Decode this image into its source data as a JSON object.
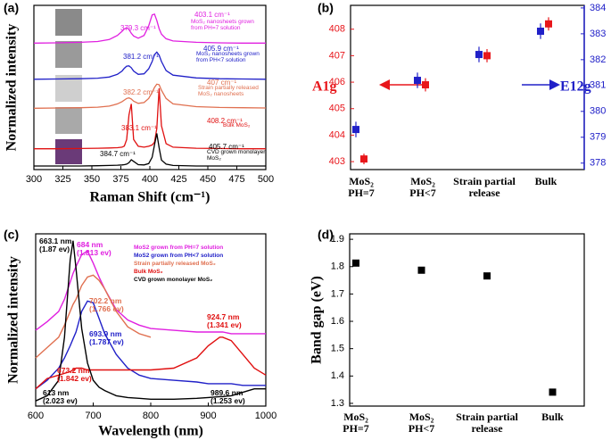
{
  "chart_data": [
    {
      "type": "line",
      "panel_label": "(a)",
      "xlabel": "Raman Shift (cm⁻¹)",
      "ylabel": "Normalized intensity",
      "x": [
        300,
        320,
        340,
        355,
        365,
        372,
        376,
        378,
        380,
        382,
        384,
        386,
        390,
        395,
        399,
        402,
        404,
        406,
        408,
        410,
        414,
        420,
        440,
        460,
        480,
        500
      ],
      "xlim": [
        300,
        500
      ],
      "xticks": [
        300,
        325,
        350,
        375,
        400,
        425,
        450,
        475,
        500
      ],
      "ylim": [
        0,
        6
      ],
      "series": [
        {
          "name": "MoS₂ nanosheets grown from PH=7 solution",
          "color": "#e020e0",
          "peaks": [
            "379.3 cm⁻¹",
            "403.1 cm⁻¹"
          ],
          "values": [
            4.62,
            4.63,
            4.65,
            4.68,
            4.75,
            4.9,
            5.05,
            5.14,
            5.18,
            5.12,
            4.98,
            4.88,
            4.8,
            4.9,
            5.25,
            5.65,
            5.68,
            5.45,
            5.15,
            4.95,
            4.78,
            4.7,
            4.65,
            4.63,
            4.62,
            4.62
          ]
        },
        {
          "name": "MoS₂ nanosheets grown from PH<7 solution",
          "color": "#2020c8",
          "peaks": [
            "381.2 cm⁻¹",
            "405.9 cm⁻¹"
          ],
          "values": [
            3.3,
            3.31,
            3.32,
            3.34,
            3.38,
            3.48,
            3.6,
            3.7,
            3.78,
            3.79,
            3.72,
            3.6,
            3.48,
            3.5,
            3.68,
            3.95,
            4.2,
            4.29,
            4.18,
            3.95,
            3.62,
            3.45,
            3.35,
            3.32,
            3.31,
            3.3
          ]
        },
        {
          "name": "Strain partially released MoS₂ nanosheets",
          "color": "#e07050",
          "peaks": [
            "382.2 cm⁻¹",
            "407 cm⁻¹"
          ],
          "values": [
            2.24,
            2.25,
            2.26,
            2.28,
            2.32,
            2.4,
            2.48,
            2.54,
            2.6,
            2.62,
            2.58,
            2.5,
            2.42,
            2.45,
            2.6,
            2.82,
            3.0,
            3.12,
            3.1,
            2.9,
            2.6,
            2.4,
            2.3,
            2.27,
            2.26,
            2.25
          ]
        },
        {
          "name": "Bulk MoS₂",
          "color": "#e01010",
          "peaks": [
            "383.1 cm⁻¹",
            "408.2 cm⁻¹"
          ],
          "values": [
            0.76,
            0.76,
            0.77,
            0.78,
            0.79,
            0.8,
            0.82,
            0.86,
            1.1,
            2.0,
            2.4,
            1.1,
            0.85,
            0.82,
            0.85,
            0.9,
            1.0,
            1.5,
            2.97,
            1.6,
            0.95,
            0.82,
            0.78,
            0.77,
            0.76,
            0.76
          ]
        },
        {
          "name": "CVD grown monolayer MoS₂",
          "color": "#000000",
          "peaks": [
            "384.7 cm⁻¹",
            "405.7 cm⁻¹"
          ],
          "values": [
            0.13,
            0.13,
            0.13,
            0.14,
            0.15,
            0.16,
            0.17,
            0.18,
            0.2,
            0.25,
            0.36,
            0.3,
            0.18,
            0.17,
            0.22,
            0.45,
            0.9,
            1.32,
            0.8,
            0.35,
            0.2,
            0.15,
            0.13,
            0.13,
            0.13,
            0.13
          ]
        }
      ]
    },
    {
      "type": "errorbar",
      "panel_label": "(b)",
      "categories": [
        "MoS₂\nPH=7",
        "MoS₂\nPH<7",
        "Strain partial\nrelease",
        "Bulk"
      ],
      "ylim": [
        402.7,
        408.9
      ],
      "yticks": [
        403,
        404,
        405,
        406,
        407,
        408
      ],
      "y2lim": [
        377.75,
        384.1
      ],
      "y2ticks": [
        378,
        379,
        380,
        381,
        382,
        383,
        384
      ],
      "series": [
        {
          "name": "A1g",
          "color": "#e8161b",
          "values": [
            403.1,
            405.9,
            407.0,
            408.2
          ],
          "errors": [
            0.2,
            0.25,
            0.25,
            0.25
          ]
        },
        {
          "name": "E12g",
          "color": "#2020c8",
          "axis": "y2",
          "values": [
            379.3,
            381.2,
            382.2,
            383.1
          ],
          "errors": [
            0.3,
            0.3,
            0.3,
            0.3
          ]
        }
      ]
    },
    {
      "type": "line",
      "panel_label": "(c)",
      "xlabel": "Wavelength (nm)",
      "ylabel": "Normalized intensity",
      "x": [
        600,
        620,
        640,
        650,
        660,
        665,
        670,
        680,
        690,
        700,
        710,
        720,
        740,
        760,
        780,
        800,
        840,
        880,
        900,
        920,
        925,
        940,
        960,
        980,
        1000
      ],
      "xlim": [
        600,
        1000
      ],
      "xticks": [
        600,
        700,
        800,
        900,
        1000
      ],
      "ylim": [
        0,
        10
      ],
      "series": [
        {
          "name": "MoS2 grown from PH=7 solution",
          "color": "#e020e0",
          "values": [
            4.4,
            4.9,
            5.5,
            6.2,
            7.2,
            7.7,
            8.1,
            8.8,
            9.0,
            8.3,
            7.5,
            6.8,
            5.6,
            5.0,
            4.7,
            4.5,
            4.4,
            4.3,
            4.3,
            4.3,
            4.3,
            4.2,
            4.2,
            4.2,
            4.2
          ]
        },
        {
          "name": "MoS2 grown from PH<7 solution",
          "color": "#2020c8",
          "values": [
            1.0,
            1.5,
            2.2,
            2.8,
            3.5,
            3.9,
            4.3,
            5.5,
            6.1,
            6.0,
            5.1,
            4.2,
            3.0,
            2.2,
            1.8,
            1.6,
            1.5,
            1.4,
            1.3,
            1.3,
            1.3,
            1.3,
            1.2,
            1.2,
            1.2
          ]
        },
        {
          "name": "Strain partially released MoS₂",
          "color": "#e07050",
          "values": [
            2.8,
            3.4,
            4.0,
            4.7,
            5.5,
            5.9,
            6.2,
            7.0,
            7.5,
            7.6,
            7.3,
            6.8,
            5.5,
            4.6,
            4.2,
            4.0,
            null,
            null,
            null,
            null,
            null,
            null,
            null,
            null,
            null
          ]
        },
        {
          "name": "Bulk MoS₂",
          "color": "#e01010",
          "values": [
            1.0,
            1.6,
            1.8,
            1.9,
            2.0,
            2.1,
            2.2,
            2.2,
            2.1,
            2.1,
            2.1,
            2.1,
            2.1,
            2.1,
            2.1,
            2.1,
            2.2,
            2.8,
            3.5,
            4.0,
            4.0,
            3.8,
            3.0,
            2.2,
            1.8
          ]
        },
        {
          "name": "CVD grown monolayer MoS₂",
          "color": "#000000",
          "values": [
            0.3,
            0.6,
            1.5,
            4.0,
            8.5,
            9.6,
            8.0,
            4.5,
            2.5,
            1.5,
            1.1,
            0.9,
            0.6,
            0.5,
            0.45,
            0.4,
            0.4,
            0.45,
            0.5,
            0.55,
            0.55,
            0.6,
            0.8,
            1.0,
            1.0
          ]
        }
      ],
      "annotations": [
        "663.1 nm\n(1.87 ev)",
        "684 nm\n(1.813 ev)",
        "702.2 nm\n(1.766 ev)",
        "693.9 nm\n(1.787 ev)",
        "924.7 nm\n(1.341 ev)",
        "673.2 nm\n(1.842 ev)",
        "613 nm\n(2.023 ev)",
        "989.6 nm\n(1.253 ev)"
      ]
    },
    {
      "type": "scatter",
      "panel_label": "(d)",
      "ylabel": "Band gap (eV)",
      "categories": [
        "MoS₂\nPH=7",
        "MoS₂\nPH<7",
        "Strain partial\nrelease",
        "Bulk"
      ],
      "values": [
        1.813,
        1.787,
        1.766,
        1.341
      ],
      "color": "#000000",
      "ylim": [
        1.29,
        1.92
      ],
      "yticks": [
        1.3,
        1.4,
        1.5,
        1.6,
        1.7,
        1.8,
        1.9
      ]
    }
  ]
}
